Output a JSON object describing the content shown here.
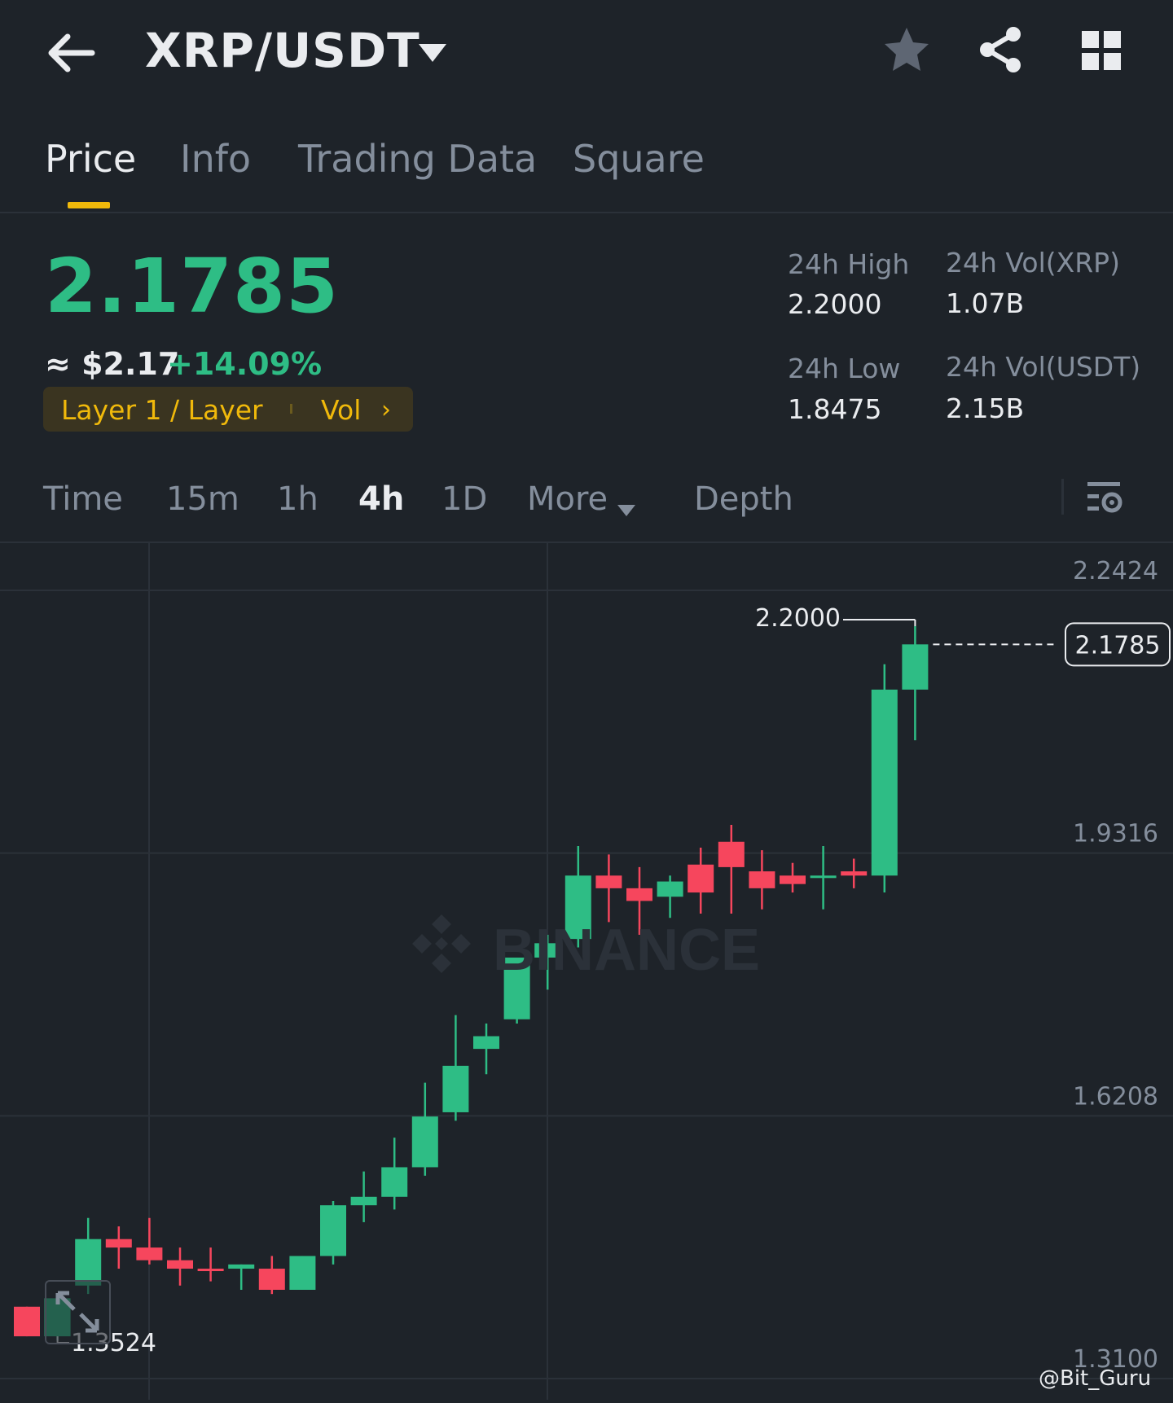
{
  "header": {
    "pair": "XRP/USDT"
  },
  "tabs": [
    {
      "label": "Price",
      "active": true
    },
    {
      "label": "Info",
      "active": false
    },
    {
      "label": "Trading Data",
      "active": false
    },
    {
      "label": "Square",
      "active": false
    }
  ],
  "ticker": {
    "last_price": "2.1785",
    "usd_approx": "≈ $2.17",
    "change_pct": "+14.09%",
    "tag_label": "Layer 1 / Layer",
    "tag_vol": "Vol",
    "stats": {
      "high_label": "24h High",
      "high_value": "2.2000",
      "low_label": "24h Low",
      "low_value": "1.8475",
      "vol_base_label": "24h Vol(XRP)",
      "vol_base_value": "1.07B",
      "vol_quote_label": "24h Vol(USDT)",
      "vol_quote_value": "2.15B"
    }
  },
  "timeframes": {
    "time": "Time",
    "m15": "15m",
    "h1": "1h",
    "h4": "4h",
    "d1": "1D",
    "more": "More",
    "depth": "Depth",
    "active": "4h"
  },
  "chart_data": {
    "type": "candlestick",
    "interval": "4h",
    "y_ticks": [
      "2.2424",
      "1.9316",
      "1.6208",
      "1.3100"
    ],
    "ylim": [
      1.31,
      2.2424
    ],
    "current_price_label": "2.1785",
    "high_marker_label": "2.2000",
    "low_marker_label": "1.3524",
    "candles": [
      {
        "o": 1.395,
        "h": 1.395,
        "l": 1.36,
        "c": 1.36
      },
      {
        "o": 1.36,
        "h": 1.41,
        "l": 1.355,
        "c": 1.405
      },
      {
        "o": 1.42,
        "h": 1.5,
        "l": 1.41,
        "c": 1.475
      },
      {
        "o": 1.475,
        "h": 1.49,
        "l": 1.44,
        "c": 1.465
      },
      {
        "o": 1.465,
        "h": 1.5,
        "l": 1.445,
        "c": 1.45
      },
      {
        "o": 1.45,
        "h": 1.465,
        "l": 1.42,
        "c": 1.44
      },
      {
        "o": 1.44,
        "h": 1.465,
        "l": 1.425,
        "c": 1.438
      },
      {
        "o": 1.44,
        "h": 1.445,
        "l": 1.415,
        "c": 1.445
      },
      {
        "o": 1.44,
        "h": 1.455,
        "l": 1.41,
        "c": 1.415
      },
      {
        "o": 1.415,
        "h": 1.455,
        "l": 1.415,
        "c": 1.455
      },
      {
        "o": 1.455,
        "h": 1.52,
        "l": 1.445,
        "c": 1.515
      },
      {
        "o": 1.515,
        "h": 1.555,
        "l": 1.495,
        "c": 1.525
      },
      {
        "o": 1.525,
        "h": 1.595,
        "l": 1.51,
        "c": 1.56
      },
      {
        "o": 1.56,
        "h": 1.66,
        "l": 1.55,
        "c": 1.62
      },
      {
        "o": 1.625,
        "h": 1.74,
        "l": 1.615,
        "c": 1.68
      },
      {
        "o": 1.7,
        "h": 1.73,
        "l": 1.67,
        "c": 1.715
      },
      {
        "o": 1.735,
        "h": 1.8,
        "l": 1.73,
        "c": 1.808
      },
      {
        "o": 1.808,
        "h": 1.835,
        "l": 1.77,
        "c": 1.825
      },
      {
        "o": 1.83,
        "h": 1.94,
        "l": 1.82,
        "c": 1.905
      },
      {
        "o": 1.905,
        "h": 1.93,
        "l": 1.85,
        "c": 1.89
      },
      {
        "o": 1.89,
        "h": 1.915,
        "l": 1.835,
        "c": 1.875
      },
      {
        "o": 1.88,
        "h": 1.905,
        "l": 1.855,
        "c": 1.898
      },
      {
        "o": 1.918,
        "h": 1.938,
        "l": 1.86,
        "c": 1.885
      },
      {
        "o": 1.945,
        "h": 1.965,
        "l": 1.86,
        "c": 1.915
      },
      {
        "o": 1.91,
        "h": 1.935,
        "l": 1.865,
        "c": 1.89
      },
      {
        "o": 1.905,
        "h": 1.92,
        "l": 1.885,
        "c": 1.895
      },
      {
        "o": 1.905,
        "h": 1.94,
        "l": 1.865,
        "c": 1.905
      },
      {
        "o": 1.91,
        "h": 1.925,
        "l": 1.89,
        "c": 1.905
      },
      {
        "o": 1.905,
        "h": 2.155,
        "l": 1.885,
        "c": 2.125
      },
      {
        "o": 2.125,
        "h": 2.2,
        "l": 2.065,
        "c": 2.1785
      }
    ]
  },
  "watermark": "BINANCE",
  "credit": "@Bit_Guru",
  "colors": {
    "background": "#1e2329",
    "up": "#2ebd85",
    "down": "#f6465d",
    "accent": "#f0b90b",
    "muted": "#848e9c"
  },
  "icons": {
    "back": "arrow-left-icon",
    "caret": "caret-down-icon",
    "star": "star-icon",
    "share": "share-icon",
    "grid": "grid-icon",
    "settings": "chart-settings-icon",
    "expand": "expand-icon"
  }
}
